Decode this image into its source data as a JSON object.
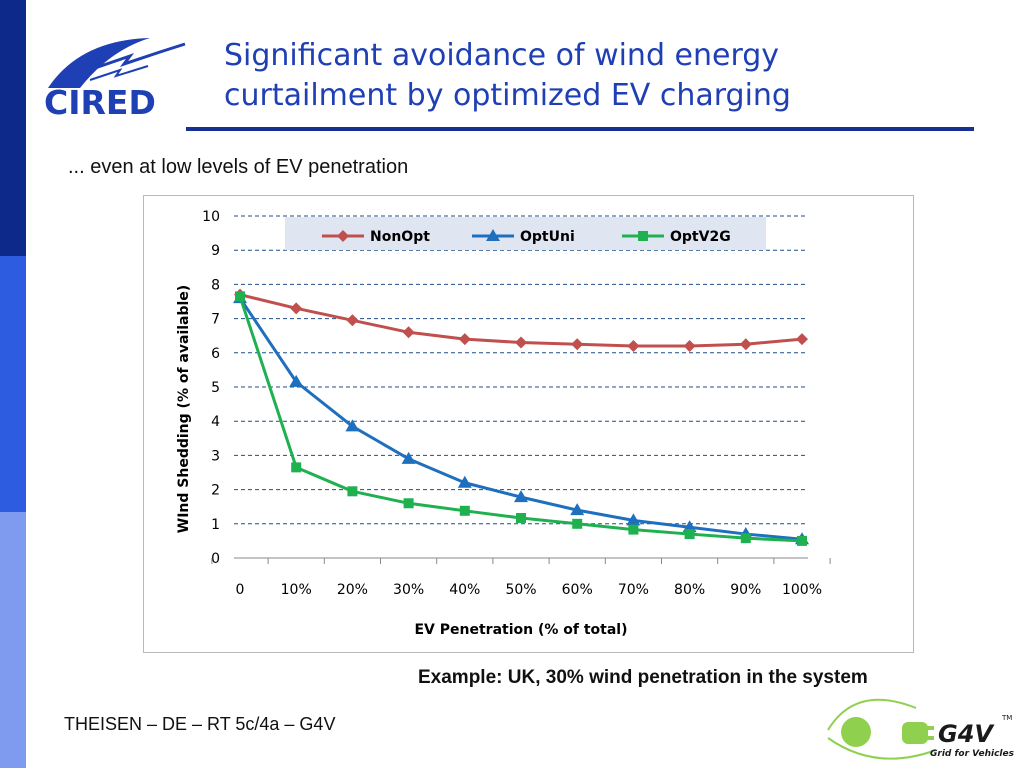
{
  "header": {
    "logo_text": "CIRED",
    "title_line1": "Significant avoidance of wind energy",
    "title_line2": "curtailment by optimized EV charging"
  },
  "subtitle": "... even at low levels of EV penetration",
  "example_text": "Example: UK, 30% wind penetration in the system",
  "footer_text": "THEISEN – DE – RT 5c/4a – G4V",
  "g4v_logo": {
    "name": "G4V",
    "tagline": "Grid for Vehicles",
    "tm": "TM"
  },
  "colors": {
    "sidebar_dark": "#0d2a8a",
    "sidebar_mid": "#2d5ce0",
    "sidebar_light": "#7f9bef",
    "title": "#1f3fb4",
    "nonopt": "#c0504d",
    "optuni": "#1f6fbf",
    "optv2g": "#1fb14f",
    "gridline": "#1f4e8c",
    "legend_bg": "#dfe6f1"
  },
  "chart_data": {
    "type": "line",
    "xlabel": "EV Penetration (% of total)",
    "ylabel": "WInd Shedding (% of available)",
    "categories": [
      "0",
      "10%",
      "20%",
      "30%",
      "40%",
      "50%",
      "60%",
      "70%",
      "80%",
      "90%",
      "100%"
    ],
    "ylim": [
      0,
      10
    ],
    "yticks": [
      "0",
      "1",
      "2",
      "3",
      "4",
      "5",
      "6",
      "7",
      "8",
      "9",
      "10"
    ],
    "grid": true,
    "legend_position": "top",
    "series": [
      {
        "name": "NonOpt",
        "marker": "diamond",
        "color": "#c0504d",
        "values": [
          7.7,
          7.3,
          6.95,
          6.6,
          6.4,
          6.3,
          6.25,
          6.2,
          6.2,
          6.25,
          6.4
        ]
      },
      {
        "name": "OptUni",
        "marker": "triangle",
        "color": "#1f6fbf",
        "values": [
          7.6,
          5.15,
          3.85,
          2.9,
          2.2,
          1.78,
          1.4,
          1.1,
          0.9,
          0.7,
          0.55
        ]
      },
      {
        "name": "OptV2G",
        "marker": "square",
        "color": "#1fb14f",
        "values": [
          7.65,
          2.65,
          1.95,
          1.6,
          1.38,
          1.17,
          1.0,
          0.83,
          0.7,
          0.58,
          0.5
        ]
      }
    ]
  }
}
